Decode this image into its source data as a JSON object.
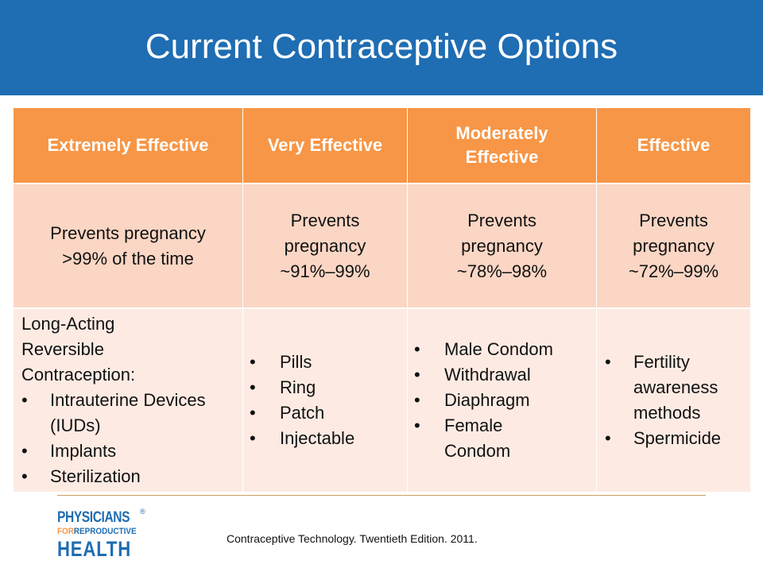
{
  "slide": {
    "title": "Current Contraceptive Options"
  },
  "table": {
    "headers": [
      "Extremely Effective",
      "Very Effective",
      "Moderately Effective",
      "Effective"
    ],
    "effectiveness": [
      "Prevents pregnancy >99% of the time",
      "Prevents pregnancy ~91%–99%",
      "Prevents pregnancy ~78%–98%",
      "Prevents pregnancy ~72%–99%"
    ],
    "methods": {
      "col1_intro": "Long-Acting Reversible Contraception:",
      "col1": [
        "Intrauterine Devices (IUDs)",
        "Implants",
        "Sterilization"
      ],
      "col2": [
        "Pills",
        "Ring",
        "Patch",
        "Injectable"
      ],
      "col3": [
        "Male Condom",
        "Withdrawal",
        "Diaphragm",
        "Female Condom"
      ],
      "col4": [
        "Fertility awareness methods",
        "Spermicide"
      ]
    }
  },
  "footer": {
    "logo": {
      "line1": "PHYSICIANS",
      "line2_for": "FOR",
      "line2_rest": "REPRODUCTIVE",
      "line3": "HEALTH",
      "reg_mark": "®"
    },
    "citation": "Contraceptive Technology. Twentieth Edition. 2011."
  },
  "colors": {
    "title_bar": "#1f6db2",
    "header_orange": "#f79646",
    "row1_peach": "#fbd6c4",
    "row2_light": "#fdebe3"
  }
}
